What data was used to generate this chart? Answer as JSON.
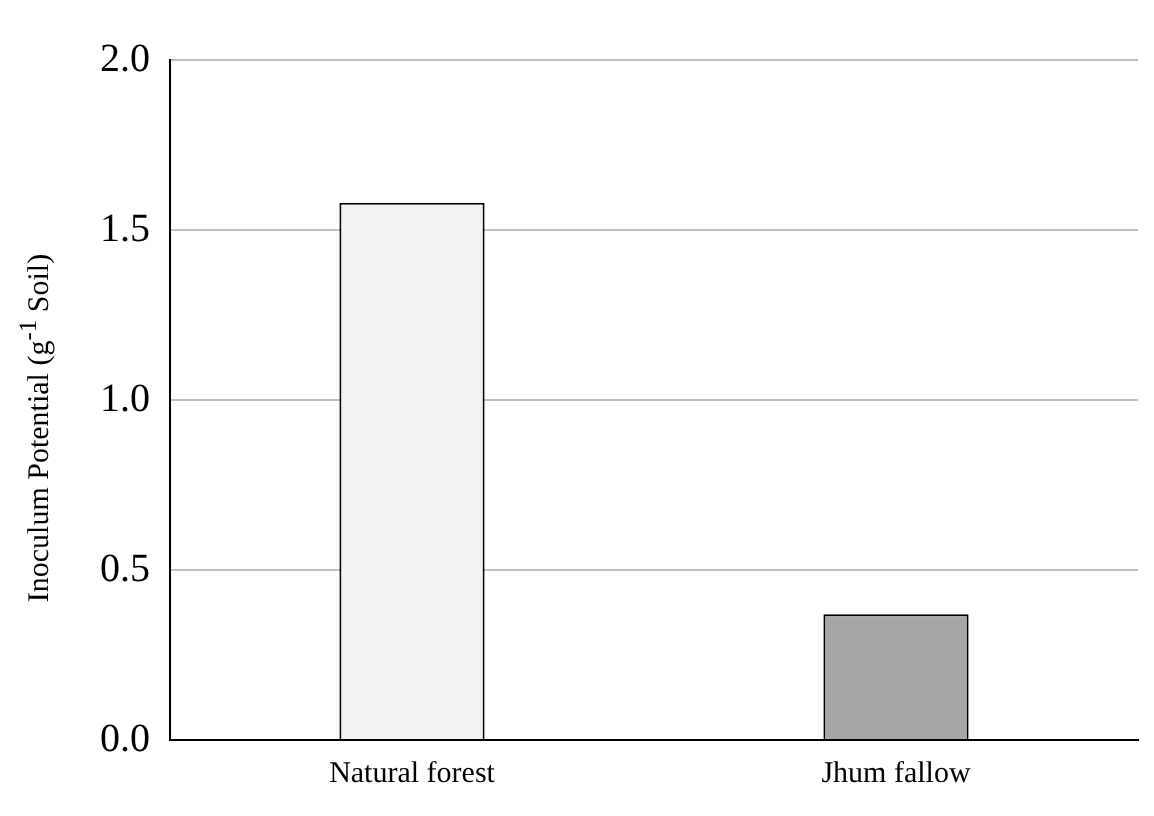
{
  "chart_data": {
    "type": "bar",
    "ylabel": "Inoculum Potential (g$^{-1}$ Soil)",
    "categories": [
      "Natural forest",
      "Jhum fallow"
    ],
    "values": [
      1.58,
      0.37
    ],
    "colors": [
      "#f2f2f2",
      "#a6a6a6"
    ],
    "ylim": [
      0,
      2
    ],
    "yticks": [
      {
        "value": 0,
        "label": "0.0"
      },
      {
        "value": 0.5,
        "label": "0.5"
      },
      {
        "value": 1,
        "label": "1.0"
      },
      {
        "value": 1.5,
        "label": "1.5"
      },
      {
        "value": 2,
        "label": "2.0"
      }
    ],
    "grid": "y"
  }
}
